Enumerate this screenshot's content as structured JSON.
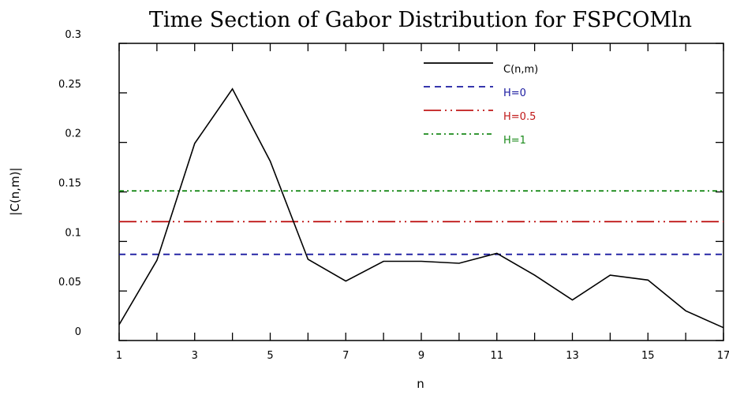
{
  "chart_data": {
    "type": "line",
    "title": "Time Section of Gabor Distribution for FSPCOMln",
    "xlabel": "n",
    "ylabel": "|C(n,m)|",
    "xlim": [
      1,
      17
    ],
    "ylim": [
      0,
      0.3
    ],
    "x_ticks": [
      1,
      3,
      5,
      7,
      9,
      11,
      13,
      15,
      17
    ],
    "x_tick_labels": [
      "1",
      "3",
      "5",
      "7",
      "9",
      "11",
      "13",
      "15",
      "17"
    ],
    "y_ticks": [
      0,
      0.05,
      0.1,
      0.15,
      0.2,
      0.25,
      0.3
    ],
    "y_tick_labels": [
      "0",
      "0.05",
      "0.1",
      "0.15",
      "0.2",
      "0.25",
      "0.3"
    ],
    "legend_position": "top-right",
    "grid": false,
    "series": [
      {
        "name": "C(n,m)",
        "color": "#000000",
        "style": "solid",
        "x": [
          1,
          2,
          3,
          4,
          5,
          6,
          7,
          8,
          9,
          10,
          11,
          12,
          13,
          14,
          15,
          16,
          17
        ],
        "y": [
          0.016,
          0.081,
          0.199,
          0.254,
          0.181,
          0.082,
          0.06,
          0.08,
          0.08,
          0.078,
          0.088,
          0.066,
          0.041,
          0.066,
          0.061,
          0.03,
          0.013
        ]
      },
      {
        "name": "H=0",
        "color": "#1a1aa0",
        "style": "dashed",
        "x": [
          1,
          17
        ],
        "y": [
          0.087,
          0.087
        ]
      },
      {
        "name": "H=0.5",
        "color": "#c01818",
        "style": "dashdotdot",
        "x": [
          1,
          17
        ],
        "y": [
          0.12,
          0.12
        ]
      },
      {
        "name": "H=1",
        "color": "#1a8a1a",
        "style": "dashdot",
        "x": [
          1,
          17
        ],
        "y": [
          0.151,
          0.151
        ]
      }
    ]
  }
}
